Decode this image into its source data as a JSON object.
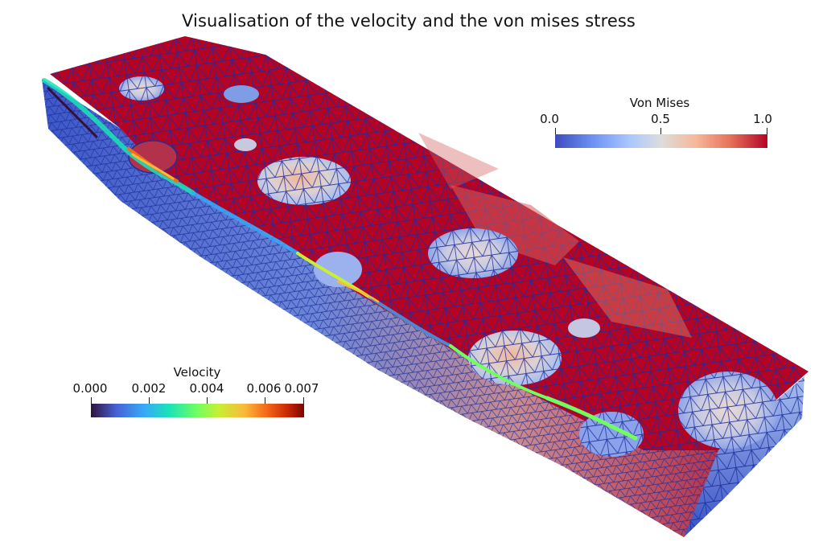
{
  "title": "Visualisation of the velocity and the von mises stress",
  "colorbars": {
    "von_mises": {
      "title": "Von Mises",
      "range": [
        0.0,
        1.0
      ],
      "colormap": "cool-to-warm (blue-white-red)",
      "ticks": [
        {
          "label": "0.0",
          "value": 0.0
        },
        {
          "label": "0.5",
          "value": 0.5
        },
        {
          "label": "1.0",
          "value": 1.0
        }
      ]
    },
    "velocity": {
      "title": "Velocity",
      "range": [
        0.0,
        0.007
      ],
      "colormap": "turbo (dark blue-cyan-green-yellow-red)",
      "ticks": [
        {
          "label": "0.000",
          "value": 0.0
        },
        {
          "label": "0.002",
          "value": 0.002
        },
        {
          "label": "0.004",
          "value": 0.004
        },
        {
          "label": "0.006",
          "value": 0.006
        },
        {
          "label": "0.007",
          "value": 0.007
        }
      ]
    }
  },
  "colors": {
    "stress_high": "#b40426",
    "stress_low": "#3b4cc0",
    "stress_mid": "#dddcdc",
    "mesh_edges": "#1a2a9a",
    "background": "#ffffff"
  }
}
